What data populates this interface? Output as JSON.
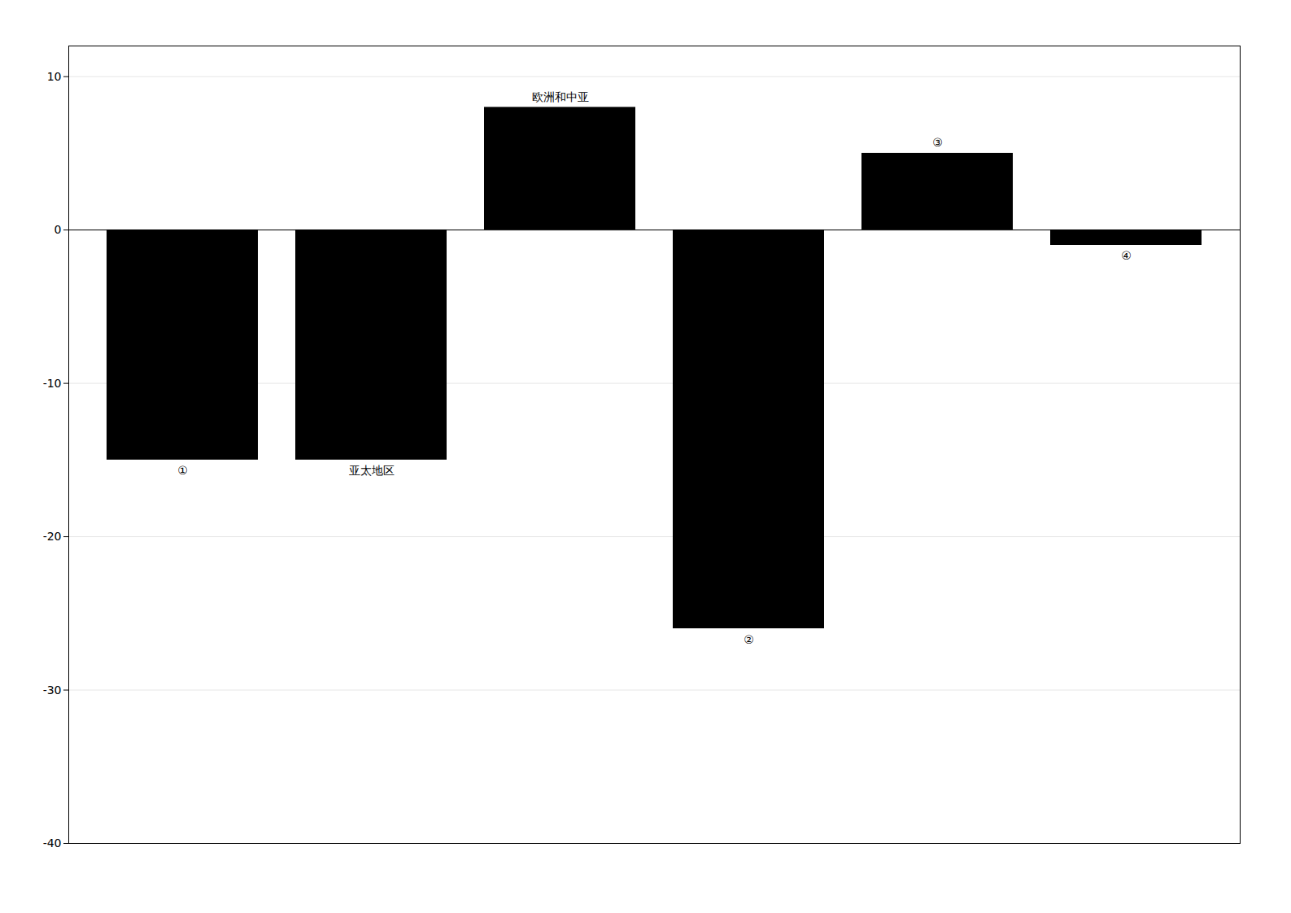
{
  "chart_data": {
    "type": "bar",
    "categories": [
      "①",
      "亚太地区",
      "欧洲和中亚",
      "②",
      "③",
      "④"
    ],
    "values": [
      -15,
      -15,
      8,
      -26,
      5,
      -1
    ],
    "ylim": [
      -40,
      12
    ],
    "yticks": [
      10,
      0,
      -10,
      -20,
      -30,
      -40
    ],
    "grid": true,
    "tick_labels": "y"
  }
}
